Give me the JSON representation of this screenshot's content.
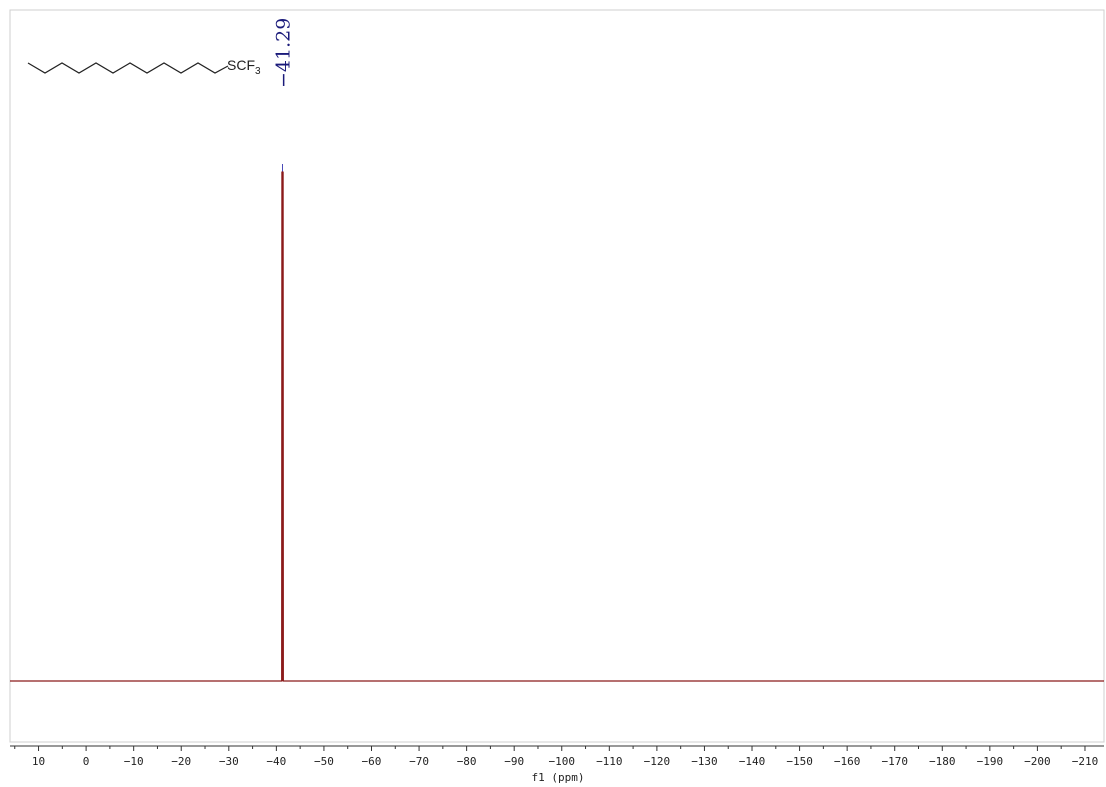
{
  "chart_data": {
    "type": "line",
    "title": "",
    "xlabel": "f1 (ppm)",
    "ylabel": "",
    "xlim": [
      16,
      -214
    ],
    "x_ticks": [
      10,
      0,
      -10,
      -20,
      -30,
      -40,
      -50,
      -60,
      -70,
      -80,
      -90,
      -100,
      -110,
      -120,
      -130,
      -140,
      -150,
      -160,
      -170,
      -180,
      -190,
      -200,
      -210
    ],
    "x_tick_labels": [
      "10",
      "0",
      "−10",
      "−20",
      "−30",
      "−40",
      "−50",
      "−60",
      "−70",
      "−80",
      "−90",
      "−100",
      "−110",
      "−120",
      "−130",
      "−140",
      "−150",
      "−160",
      "−170",
      "−180",
      "−190",
      "−200",
      "−210"
    ],
    "peaks": [
      {
        "x": -41.29,
        "label": "−41.29"
      }
    ],
    "series": [
      {
        "color": "#8b1a1a",
        "baseline": 0,
        "peak_x": -41.29,
        "peak_height": 1.0
      }
    ],
    "grid": false,
    "structure": {
      "formula_main": "SCF",
      "formula_sub": "3"
    }
  },
  "colors": {
    "spectrum": "#8b1a1a",
    "peak_label": "#1a1a7a",
    "axis": "#333333"
  }
}
